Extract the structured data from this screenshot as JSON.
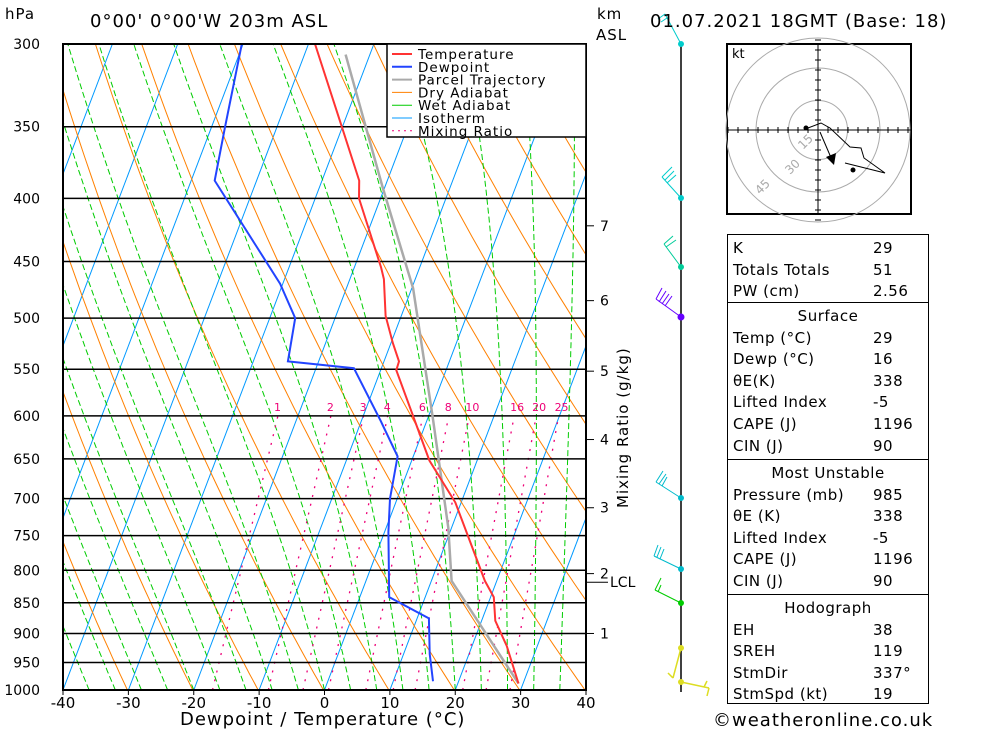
{
  "header": {
    "hpa_label": "hPa",
    "location": "0°00' 0°00'W 203m ASL",
    "km_label": "km",
    "asl_label": "ASL",
    "datetime": "01.07.2021 18GMT (Base: 18)"
  },
  "footer": {
    "copyright": "©weatheronline.co.uk"
  },
  "colors": {
    "temperature": "#ff3333",
    "dewpoint": "#2244ff",
    "parcel": "#aaaaaa",
    "dry_adiabat": "#ff8000",
    "wet_adiabat": "#00cc00",
    "isotherm": "#0099ff",
    "mixing_ratio": "#ee0077"
  },
  "chart_data": {
    "type": "line",
    "subtype": "skew-T log-P",
    "xlabel": "Dewpoint / Temperature (°C)",
    "ylabel": "hPa",
    "xlim": [
      -40,
      40
    ],
    "ylim": [
      1000,
      300
    ],
    "x_ticks": [
      "-40",
      "-30",
      "-20",
      "-10",
      "0",
      "10",
      "20",
      "30",
      "40"
    ],
    "pressure_levels": [
      "300",
      "350",
      "400",
      "450",
      "500",
      "550",
      "600",
      "650",
      "700",
      "750",
      "800",
      "850",
      "900",
      "950",
      "1000"
    ],
    "km_ticks": [
      {
        "label": "1",
        "pressure": 900
      },
      {
        "label": "2",
        "pressure": 805
      },
      {
        "label": "3",
        "pressure": 712
      },
      {
        "label": "4",
        "pressure": 627
      },
      {
        "label": "5",
        "pressure": 552
      },
      {
        "label": "6",
        "pressure": 484
      },
      {
        "label": "7",
        "pressure": 421
      }
    ],
    "lcl": {
      "label": "LCL",
      "pressure": 818
    },
    "mixing_ratio_axis_label": "Mixing Ratio (g/kg)",
    "mixing_ratio_labels": [
      "1",
      "2",
      "3",
      "4",
      "6",
      "8",
      "10",
      "16",
      "20",
      "25"
    ],
    "legend": {
      "position": "top-right",
      "entries": [
        "Temperature",
        "Dewpoint",
        "Parcel Trajectory",
        "Dry Adiabat",
        "Wet Adiabat",
        "Isotherm",
        "Mixing Ratio"
      ]
    },
    "series": [
      {
        "name": "Temperature",
        "points": [
          [
            988,
            29.3
          ],
          [
            921,
            25.3
          ],
          [
            879,
            22.1
          ],
          [
            841,
            20.5
          ],
          [
            816,
            18.2
          ],
          [
            705,
            9.1
          ],
          [
            652,
            2.7
          ],
          [
            551,
            -7.6
          ],
          [
            542,
            -7.7
          ],
          [
            524,
            -9.7
          ],
          [
            498,
            -12.4
          ],
          [
            465,
            -14.8
          ],
          [
            455,
            -15.9
          ],
          [
            400,
            -23.3
          ],
          [
            387,
            -24.3
          ],
          [
            350,
            -30.1
          ],
          [
            300,
            -39.0
          ]
        ]
      },
      {
        "name": "Dewpoint",
        "points": [
          [
            984,
            16.1
          ],
          [
            935,
            14.0
          ],
          [
            875,
            11.8
          ],
          [
            841,
            4.5
          ],
          [
            745,
            0.6
          ],
          [
            700,
            -1.1
          ],
          [
            647,
            -2.4
          ],
          [
            606,
            -7.0
          ],
          [
            549,
            -14.2
          ],
          [
            542,
            -24.7
          ],
          [
            500,
            -26.1
          ],
          [
            469,
            -30.4
          ],
          [
            387,
            -46.4
          ],
          [
            351,
            -47.9
          ],
          [
            300,
            -50.2
          ]
        ]
      },
      {
        "name": "Parcel Trajectory",
        "points": [
          [
            988,
            29.3
          ],
          [
            816,
            13.1
          ],
          [
            739,
            9.5
          ],
          [
            603,
            0.8
          ],
          [
            473,
            -9.8
          ],
          [
            392,
            -20.3
          ],
          [
            306,
            -33.7
          ]
        ]
      }
    ],
    "wind_levels": [
      {
        "pressure": 300,
        "color": "#00cccc"
      },
      {
        "pressure": 400,
        "color": "#00cccc"
      },
      {
        "pressure": 450,
        "color": "#00cc99"
      },
      {
        "pressure": 500,
        "color": "#6600ff"
      },
      {
        "pressure": 700,
        "color": "#00bbcc"
      },
      {
        "pressure": 800,
        "color": "#00bbcc"
      },
      {
        "pressure": 850,
        "color": "#00cc00"
      },
      {
        "pressure": 925,
        "color": "#dddd22"
      },
      {
        "pressure": 1000,
        "color": "#dddd22"
      }
    ],
    "hodograph": {
      "unit_label": "kt",
      "ring_labels": [
        "15",
        "30",
        "45"
      ]
    }
  },
  "indices": {
    "rows": [
      {
        "k": "K",
        "v": "29"
      },
      {
        "k": "Totals Totals",
        "v": "51"
      },
      {
        "k": "PW (cm)",
        "v": "2.56"
      }
    ],
    "surface": {
      "title": "Surface",
      "rows": [
        {
          "k": "Temp (°C)",
          "v": "29"
        },
        {
          "k": "Dewp (°C)",
          "v": "16"
        },
        {
          "k": "θE(K)",
          "v": "338"
        },
        {
          "k": "Lifted Index",
          "v": "-5"
        },
        {
          "k": "CAPE (J)",
          "v": "1196"
        },
        {
          "k": "CIN (J)",
          "v": "90"
        }
      ]
    },
    "most_unstable": {
      "title": "Most Unstable",
      "rows": [
        {
          "k": "Pressure (mb)",
          "v": "985"
        },
        {
          "k": "θE (K)",
          "v": "338"
        },
        {
          "k": "Lifted Index",
          "v": "-5"
        },
        {
          "k": "CAPE (J)",
          "v": "1196"
        },
        {
          "k": "CIN (J)",
          "v": "90"
        }
      ]
    },
    "hodograph": {
      "title": "Hodograph",
      "rows": [
        {
          "k": "EH",
          "v": "38"
        },
        {
          "k": "SREH",
          "v": "119"
        },
        {
          "k": "StmDir",
          "v": "337°"
        },
        {
          "k": "StmSpd (kt)",
          "v": "19"
        }
      ]
    }
  }
}
